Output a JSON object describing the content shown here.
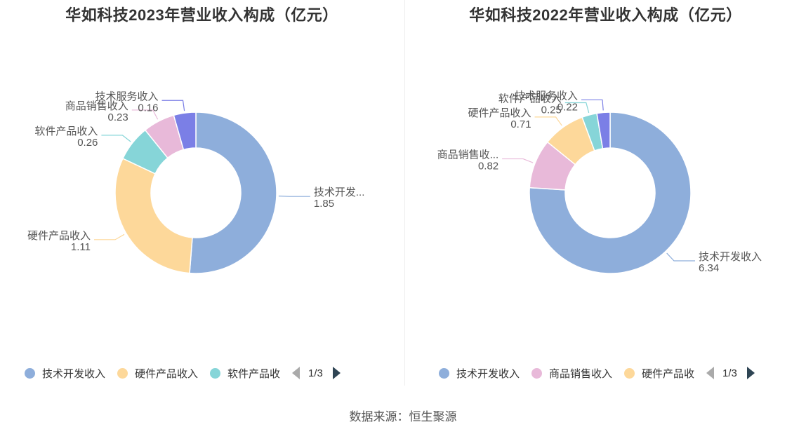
{
  "chart_data": [
    {
      "type": "pie",
      "variant": "donut",
      "title": "华如科技2023年营业收入构成（亿元）",
      "series": [
        {
          "name": "技术开发收入",
          "value": 1.85,
          "color": "#8eaedb",
          "label": "技术开发...",
          "value_label": "1.85"
        },
        {
          "name": "硬件产品收入",
          "value": 1.11,
          "color": "#fdd89a",
          "label": "硬件产品收入",
          "value_label": "1.11"
        },
        {
          "name": "软件产品收入",
          "value": 0.26,
          "color": "#86d5d8",
          "label": "软件产品收入",
          "value_label": "0.26"
        },
        {
          "name": "商品销售收入",
          "value": 0.23,
          "color": "#e8b9d9",
          "label": "商品销售收入",
          "value_label": "0.23"
        },
        {
          "name": "技术服务收入",
          "value": 0.16,
          "color": "#7b7fe6",
          "label": "技术服务收入",
          "value_label": "0.16"
        }
      ],
      "legend": {
        "position": "bottom",
        "items": [
          "技术开发收入",
          "硬件产品收入",
          "软件产品收"
        ],
        "page": "1/3"
      }
    },
    {
      "type": "pie",
      "variant": "donut",
      "title": "华如科技2022年营业收入构成（亿元）",
      "series": [
        {
          "name": "技术开发收入",
          "value": 6.34,
          "color": "#8eaedb",
          "label": "技术开发收入",
          "value_label": "6.34"
        },
        {
          "name": "商品销售收入",
          "value": 0.82,
          "color": "#e8b9d9",
          "label": "商品销售收...",
          "value_label": "0.82"
        },
        {
          "name": "硬件产品收入",
          "value": 0.71,
          "color": "#fdd89a",
          "label": "硬件产品收入",
          "value_label": "0.71"
        },
        {
          "name": "软件产品收入",
          "value": 0.25,
          "color": "#86d5d8",
          "label": "软件产品收入",
          "value_label": "0.25"
        },
        {
          "name": "技术服务收入",
          "value": 0.22,
          "color": "#7b7fe6",
          "label": "技术服务收入",
          "value_label": "0.22"
        }
      ],
      "legend": {
        "position": "bottom",
        "items": [
          "技术开发收入",
          "商品销售收入",
          "硬件产品收"
        ],
        "page": "1/3"
      }
    }
  ],
  "footer": {
    "source": "数据来源：恒生聚源"
  }
}
